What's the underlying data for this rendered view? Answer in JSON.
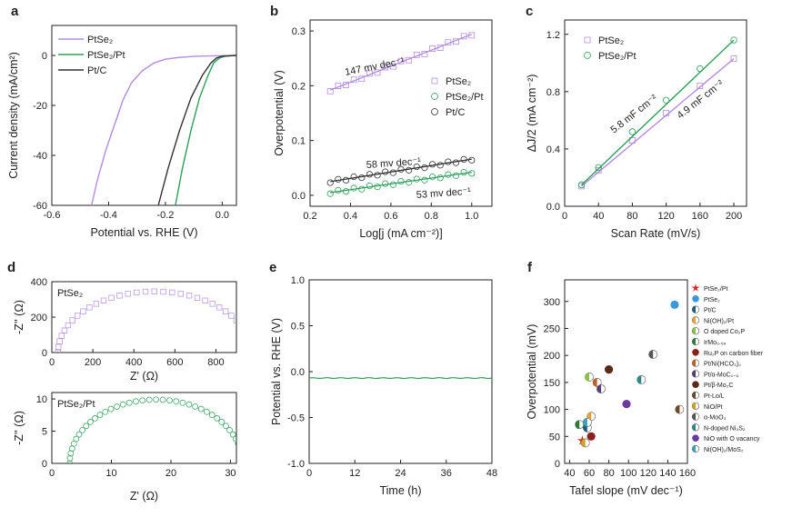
{
  "colors": {
    "ptse2": "#b48ce0",
    "ptse2pt": "#2e9e5a",
    "ptc": "#333333",
    "axis": "#222222"
  },
  "chart_data": [
    {
      "panel": "a",
      "type": "line",
      "xlabel": "Potential vs. RHE (V)",
      "ylabel": "Current density (mA/cm²)",
      "xlim": [
        -0.6,
        0.05
      ],
      "ylim": [
        -60,
        12
      ],
      "xticks": [
        "-0.6",
        "-0.4",
        "-0.2",
        "0.0"
      ],
      "yticks": [
        "-60",
        "-40",
        "-20",
        "0"
      ],
      "legend": [
        "PtSe₂",
        "PtSe₂/Pt",
        "Pt/C"
      ],
      "series": [
        {
          "name": "PtSe₂",
          "points": [
            [
              -0.46,
              -60
            ],
            [
              -0.44,
              -50
            ],
            [
              -0.41,
              -38
            ],
            [
              -0.38,
              -28
            ],
            [
              -0.35,
              -18
            ],
            [
              -0.32,
              -11
            ],
            [
              -0.28,
              -6
            ],
            [
              -0.24,
              -3
            ],
            [
              -0.2,
              -1.5
            ],
            [
              -0.15,
              -0.8
            ],
            [
              -0.1,
              -0.4
            ],
            [
              -0.05,
              -0.2
            ],
            [
              0.05,
              0
            ]
          ]
        },
        {
          "name": "PtSe₂/Pt",
          "points": [
            [
              -0.165,
              -60
            ],
            [
              -0.14,
              -45
            ],
            [
              -0.11,
              -30
            ],
            [
              -0.08,
              -17
            ],
            [
              -0.05,
              -8
            ],
            [
              -0.03,
              -3
            ],
            [
              -0.01,
              -1
            ],
            [
              0.01,
              -0.3
            ],
            [
              0.05,
              0
            ]
          ]
        },
        {
          "name": "Pt/C",
          "points": [
            [
              -0.225,
              -60
            ],
            [
              -0.19,
              -45
            ],
            [
              -0.15,
              -30
            ],
            [
              -0.11,
              -17
            ],
            [
              -0.07,
              -8
            ],
            [
              -0.04,
              -3
            ],
            [
              -0.02,
              -1
            ],
            [
              0.0,
              -0.3
            ],
            [
              0.05,
              0
            ]
          ]
        }
      ]
    },
    {
      "panel": "b",
      "type": "scatter",
      "xlabel": "Log[j (mA cm⁻²)]",
      "ylabel": "Overpotential (V)",
      "xlim": [
        0.2,
        1.1
      ],
      "ylim": [
        -0.02,
        0.32
      ],
      "xticks": [
        "0.2",
        "0.4",
        "0.6",
        "0.8",
        "1.0"
      ],
      "yticks": [
        "0.0",
        "0.1",
        "0.2",
        "0.3"
      ],
      "legend": [
        "PtSe₂",
        "PtSe₂/Pt",
        "Pt/C"
      ],
      "annotations": [
        "147 mv dec⁻¹",
        "58 mv dec⁻¹",
        "53 mv dec⁻¹"
      ],
      "series": [
        {
          "name": "PtSe₂",
          "x_start": 0.3,
          "x_end": 1.0,
          "y_start": 0.192,
          "y_end": 0.294
        },
        {
          "name": "PtSe₂/Pt",
          "x_start": 0.3,
          "x_end": 1.0,
          "y_start": 0.005,
          "y_end": 0.042
        },
        {
          "name": "Pt/C",
          "x_start": 0.3,
          "x_end": 1.0,
          "y_start": 0.025,
          "y_end": 0.066
        }
      ]
    },
    {
      "panel": "c",
      "type": "scatter",
      "xlabel": "Scan Rate (mV/s)",
      "ylabel": "ΔJ/2 (mA cm⁻²)",
      "xlim": [
        0,
        215
      ],
      "ylim": [
        0,
        1.3
      ],
      "xticks": [
        "0",
        "40",
        "80",
        "120",
        "160",
        "200"
      ],
      "yticks": [
        "0.0",
        "0.4",
        "0.8",
        "1.2"
      ],
      "legend": [
        "PtSe₂",
        "PtSe₂/Pt"
      ],
      "annotations": [
        "5.8 mF cm⁻²",
        "4.9 mF cm⁻²"
      ],
      "series": [
        {
          "name": "PtSe₂",
          "x": [
            20,
            40,
            80,
            120,
            160,
            200
          ],
          "y": [
            0.14,
            0.25,
            0.46,
            0.65,
            0.84,
            1.03
          ]
        },
        {
          "name": "PtSe₂/Pt",
          "x": [
            20,
            40,
            80,
            120,
            160,
            200
          ],
          "y": [
            0.15,
            0.27,
            0.52,
            0.74,
            0.96,
            1.16
          ]
        }
      ]
    },
    {
      "panel": "d-top",
      "type": "scatter",
      "title": "PtSe₂",
      "xlabel": "Z' (Ω)",
      "ylabel": "-Z'' (Ω)",
      "xlim": [
        0,
        900
      ],
      "ylim": [
        0,
        400
      ],
      "xticks": [
        "0",
        "200",
        "400",
        "600",
        "800"
      ],
      "yticks": [
        "0",
        "200",
        "400"
      ],
      "series": [
        {
          "name": "PtSe₂",
          "center": 500,
          "radius": 470,
          "height": 345
        }
      ]
    },
    {
      "panel": "d-bottom",
      "type": "scatter",
      "title": "PtSe₂/Pt",
      "xlabel": "Z' (Ω)",
      "ylabel": "-Z'' (Ω)",
      "xlim": [
        0,
        31
      ],
      "ylim": [
        0,
        11
      ],
      "xticks": [
        "0",
        "10",
        "20",
        "30"
      ],
      "yticks": [
        "0",
        "5",
        "10"
      ],
      "series": [
        {
          "name": "PtSe₂/Pt",
          "center": 17.5,
          "radius": 14.5,
          "height": 9.9
        }
      ]
    },
    {
      "panel": "e",
      "type": "line",
      "xlabel": "Time (h)",
      "ylabel": "Potential vs. RHE (V)",
      "xlim": [
        0,
        48
      ],
      "ylim": [
        -1.0,
        1.0
      ],
      "xticks": [
        "0",
        "12",
        "24",
        "36",
        "48"
      ],
      "yticks": [
        "-1.0",
        "-0.5",
        "0.0",
        "0.5",
        "1.0"
      ],
      "series": [
        {
          "name": "PtSe₂/Pt",
          "value": -0.07
        }
      ]
    },
    {
      "panel": "f",
      "type": "scatter",
      "xlabel": "Tafel slope (mV dec⁻¹)",
      "ylabel": "Overpotential (mV)",
      "xlim": [
        35,
        160
      ],
      "ylim": [
        0,
        340
      ],
      "xticks": [
        "40",
        "60",
        "80",
        "100",
        "120",
        "140",
        "160"
      ],
      "yticks": [
        "0",
        "50",
        "100",
        "150",
        "200",
        "250",
        "300"
      ],
      "points": [
        {
          "name": "PtSe₂/Pt",
          "x": 53,
          "y": 42,
          "color": "#d62728",
          "style": "star"
        },
        {
          "name": "PtSe₂",
          "x": 147,
          "y": 294,
          "color": "#3a9ad9",
          "style": "full"
        },
        {
          "name": "Pt/C",
          "x": 58,
          "y": 66,
          "color": "#1f5f7a",
          "style": "half"
        },
        {
          "name": "Ni(OH)₂/Pt",
          "x": 62,
          "y": 87,
          "color": "#f0a030",
          "style": "half"
        },
        {
          "name": "O doped Co₂P",
          "x": 60,
          "y": 160,
          "color": "#8bc34a",
          "style": "half"
        },
        {
          "name": "IrMo₀.₅₉",
          "x": 50,
          "y": 72,
          "color": "#2e7d32",
          "style": "half"
        },
        {
          "name": "Ru₂P on carbon fiber",
          "x": 62,
          "y": 50,
          "color": "#8b2020",
          "style": "full"
        },
        {
          "name": "Pt/Ni(HCO₃)₂",
          "x": 68,
          "y": 150,
          "color": "#c0602a",
          "style": "half"
        },
        {
          "name": "Pt/α-MoC₁₋ₓ",
          "x": 72,
          "y": 138,
          "color": "#5a3a7a",
          "style": "half"
        },
        {
          "name": "Pt/β-Mo₂C",
          "x": 80,
          "y": 174,
          "color": "#5a2a1a",
          "style": "full"
        },
        {
          "name": "Pt-Lo/L",
          "x": 152,
          "y": 100,
          "color": "#6b4a2a",
          "style": "half"
        },
        {
          "name": "NiO/Pt",
          "x": 56,
          "y": 38,
          "color": "#c9a227",
          "style": "half"
        },
        {
          "name": "α-MoO₃",
          "x": 125,
          "y": 202,
          "color": "#555555",
          "style": "half"
        },
        {
          "name": "N-doped Ni₃S₂",
          "x": 113,
          "y": 155,
          "color": "#2a8a8a",
          "style": "half"
        },
        {
          "name": "NiO with O vacancy",
          "x": 98,
          "y": 110,
          "color": "#6a3aa0",
          "style": "full"
        },
        {
          "name": "Ni(OH)₂/MoS₂",
          "x": 58,
          "y": 76,
          "color": "#3aa0c0",
          "style": "half"
        }
      ]
    }
  ]
}
